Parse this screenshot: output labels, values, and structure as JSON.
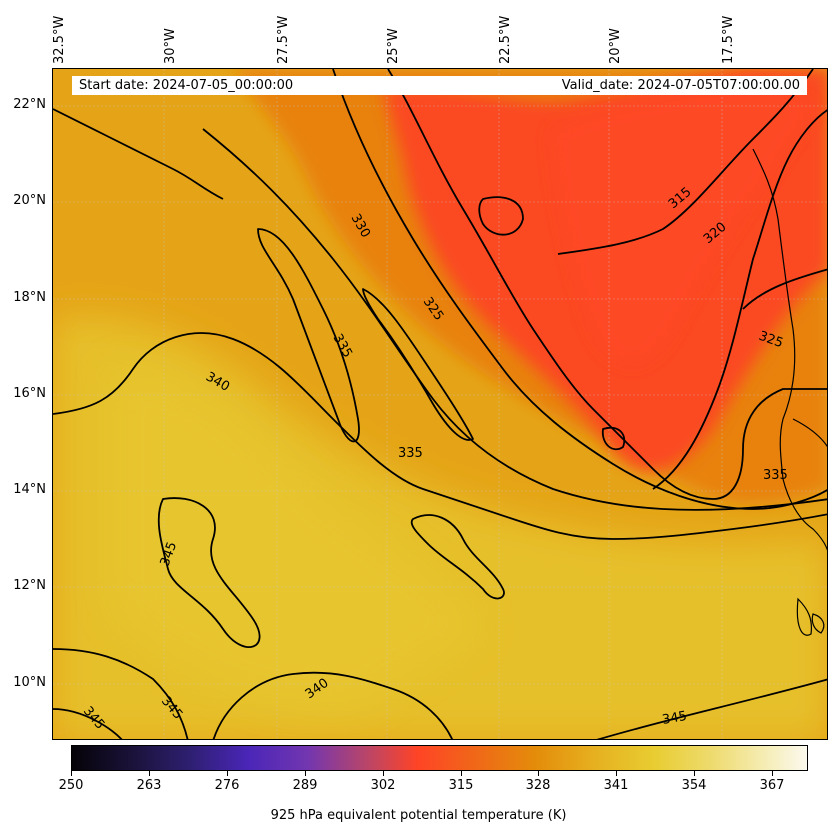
{
  "header": {
    "start_date": "Start date: 2024-07-05_00:00:00",
    "valid_date": "Valid_date: 2024-07-05T07:00:00.00"
  },
  "axes": {
    "lon_labels": [
      "32.5°W",
      "30°W",
      "27.5°W",
      "25°W",
      "22.5°W",
      "20°W",
      "17.5°W"
    ],
    "lat_labels": [
      "22°N",
      "20°N",
      "18°N",
      "16°N",
      "14°N",
      "12°N",
      "10°N"
    ]
  },
  "contour_labels": [
    "315",
    "320",
    "325",
    "325",
    "330",
    "335",
    "335",
    "335",
    "340",
    "340",
    "345",
    "345",
    "345",
    "345"
  ],
  "colorbar": {
    "ticks": [
      "250",
      "263",
      "276",
      "289",
      "302",
      "315",
      "328",
      "341",
      "354",
      "367"
    ],
    "title": "925 hPa equivalent potential temperature (K)",
    "colors": [
      "#050308",
      "#2e1f70",
      "#4a26b8",
      "#7236b0",
      "#b8456a",
      "#ff4426",
      "#e48c0a",
      "#e6b020",
      "#eedb6e",
      "#fbf9ee"
    ]
  }
}
